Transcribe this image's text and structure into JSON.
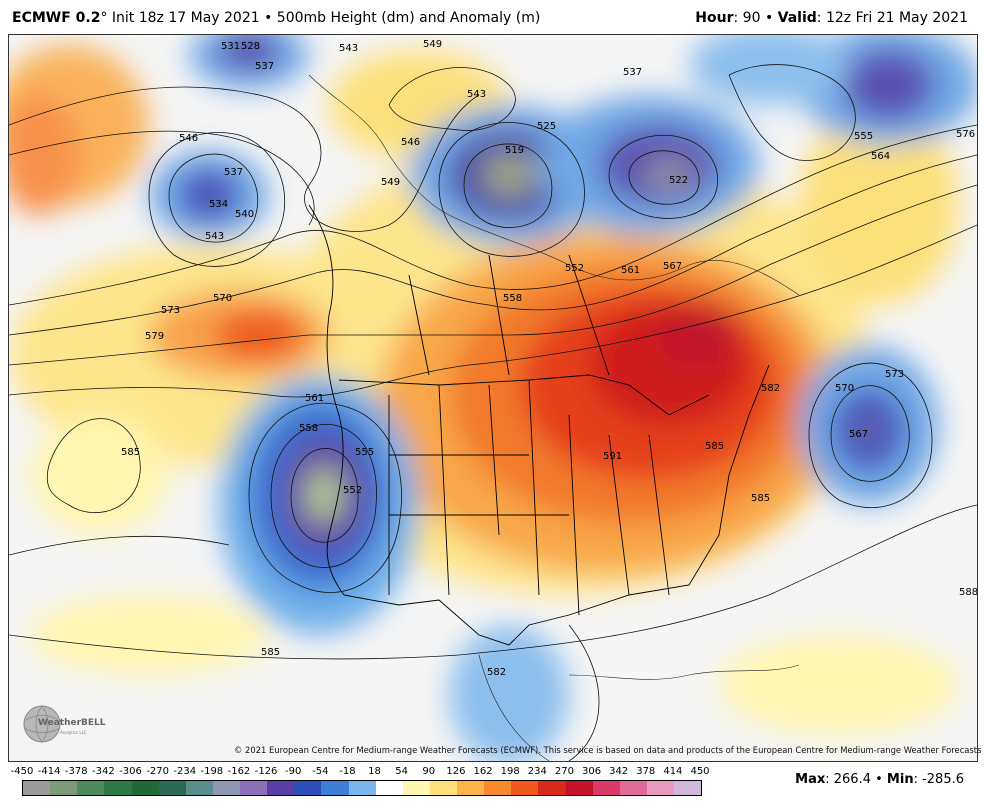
{
  "header": {
    "model": "ECMWF 0.2",
    "degree": "°",
    "init": " Init 18z 17 May 2021 • 500mb Height (dm) and Anomaly (m)",
    "hour_label": "Hour",
    "hour_value": ": 90 • ",
    "valid_label": "Valid",
    "valid_value": ": 12z Fri 21 May 2021"
  },
  "logo": {
    "text": "WeatherBELL",
    "subtext": "Analytics LLC",
    "icon": "globe-icon"
  },
  "copyright": "© 2021 European Centre for Medium-range Weather Forecasts (ECMWF). This service is based on data and products of the European Centre for Medium-range Weather Forecasts (ECMWF).",
  "colorbar": {
    "labels": [
      "-450",
      "-414",
      "-378",
      "-342",
      "-306",
      "-270",
      "-234",
      "-198",
      "-162",
      "-126",
      "-90",
      "-54",
      "-18",
      "18",
      "54",
      "90",
      "126",
      "162",
      "198",
      "234",
      "270",
      "306",
      "342",
      "378",
      "414",
      "450"
    ],
    "colors": [
      "#9a9a9a",
      "#7a9a7a",
      "#4f8b5a",
      "#2e7a44",
      "#1f6a36",
      "#2b6a52",
      "#5a8e8a",
      "#8f98b4",
      "#8c6fb8",
      "#5b3fa6",
      "#2f4fb8",
      "#3a7fd8",
      "#7ab6ec",
      "#ffffff",
      "#fff6b0",
      "#fde07a",
      "#fbb448",
      "#f78a2e",
      "#ef5a1c",
      "#d8291a",
      "#c3122a",
      "#d93a6a",
      "#e06a98",
      "#e89ac0",
      "#d0b8d8"
    ]
  },
  "maxmin": {
    "max_label": "Max",
    "max_value": ": 266.4 • ",
    "min_label": "Min",
    "min_value": ": -285.6"
  },
  "contour_labels": [
    "531",
    "528",
    "537",
    "543",
    "549",
    "543",
    "546",
    "549",
    "525",
    "519",
    "537",
    "522",
    "555",
    "564",
    "576",
    "546",
    "537",
    "534",
    "540",
    "543",
    "552",
    "561",
    "567",
    "558",
    "570",
    "573",
    "579",
    "585",
    "561",
    "558",
    "555",
    "552",
    "570",
    "573",
    "567",
    "582",
    "585",
    "591",
    "585",
    "585",
    "582",
    "588"
  ]
}
